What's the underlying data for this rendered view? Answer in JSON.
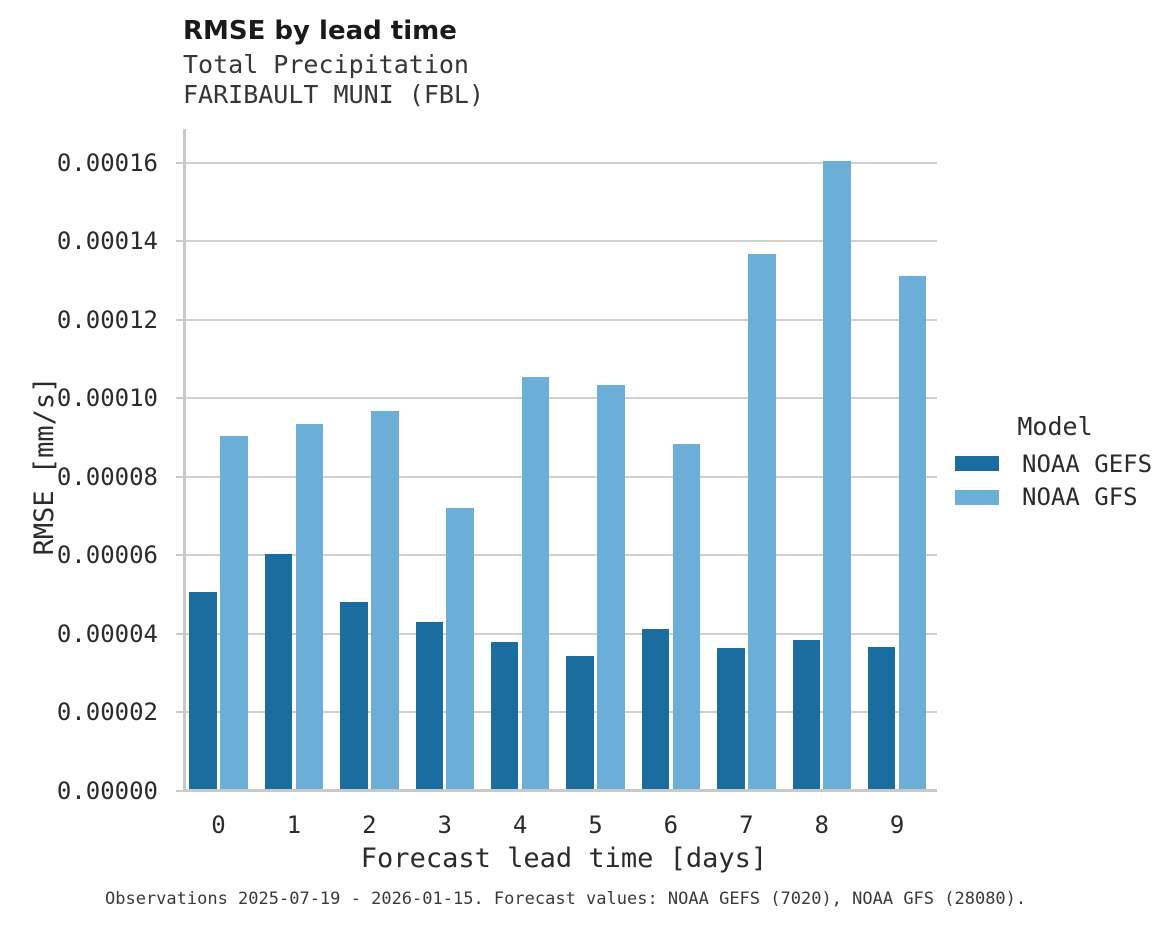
{
  "caption": "Observations 2025-07-19 - 2026-01-15. Forecast values: NOAA GEFS (7020), NOAA GFS (28080).",
  "chart_data": {
    "type": "bar",
    "title": "RMSE by lead time",
    "subtitle": [
      "Total Precipitation",
      "FARIBAULT MUNI (FBL)"
    ],
    "xlabel": "Forecast lead time [days]",
    "ylabel": "RMSE [mm/s]",
    "categories": [
      "0",
      "1",
      "2",
      "3",
      "4",
      "5",
      "6",
      "7",
      "8",
      "9"
    ],
    "series": [
      {
        "name": "NOAA GEFS",
        "color": "#1A6D9E",
        "values": [
          5.03e-05,
          6e-05,
          4.76e-05,
          4.27e-05,
          3.75e-05,
          3.4e-05,
          4.07e-05,
          3.59e-05,
          3.79e-05,
          3.61e-05
        ]
      },
      {
        "name": "NOAA GFS",
        "color": "#6BAFD8",
        "values": [
          9e-05,
          9.31e-05,
          9.63e-05,
          7.16e-05,
          0.000105,
          0.0001031,
          8.8e-05,
          0.0001363,
          0.00016,
          0.0001309
        ]
      }
    ],
    "ylim": [
      0,
      0.000169
    ],
    "yticks": [
      0.0,
      2e-05,
      4e-05,
      6e-05,
      8e-05,
      0.0001,
      0.00012,
      0.00014,
      0.00016
    ],
    "ytick_labels": [
      "0.00000",
      "0.00002",
      "0.00004",
      "0.00006",
      "0.00008",
      "0.00010",
      "0.00012",
      "0.00014",
      "0.00016"
    ],
    "legend_title": "Model",
    "legend_position": "right",
    "grid": "horizontal",
    "grid_color": "#d0d0d0",
    "axis_color": "#c9c9c9",
    "text_color": "#2b2b2b"
  }
}
